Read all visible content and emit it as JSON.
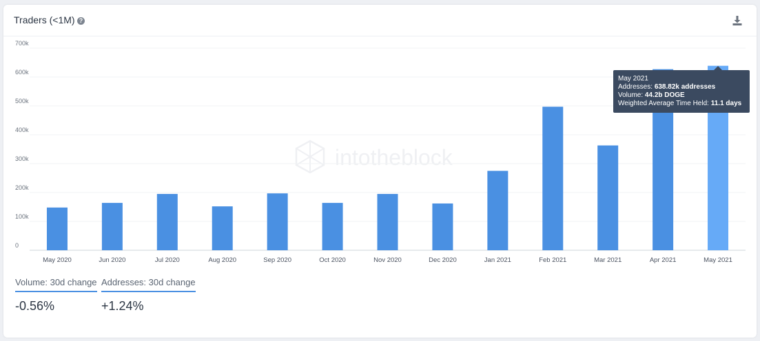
{
  "header": {
    "title": "Traders (<1M)",
    "help_icon": "question-circle-icon",
    "download_icon": "download-icon"
  },
  "watermark": "intotheblock",
  "chart_data": {
    "type": "bar",
    "categories": [
      "May 2020",
      "Jun 2020",
      "Jul 2020",
      "Aug 2020",
      "Sep 2020",
      "Oct 2020",
      "Nov 2020",
      "Dec 2020",
      "Jan 2021",
      "Feb 2021",
      "Mar 2021",
      "Apr 2021",
      "May 2021"
    ],
    "values": [
      148000,
      164000,
      195000,
      152000,
      197000,
      164000,
      195000,
      162000,
      275000,
      497000,
      363000,
      627000,
      638820
    ],
    "y_tick_labels": [
      "0",
      "100k",
      "200k",
      "300k",
      "400k",
      "500k",
      "600k",
      "700k"
    ],
    "y_tick_values": [
      0,
      100000,
      200000,
      300000,
      400000,
      500000,
      600000,
      700000
    ],
    "ylim": [
      0,
      700000
    ],
    "grid": true,
    "bar_color": "#4a90e2",
    "highlight_color": "#66aaf7",
    "highlight_index": 12,
    "tooltip": {
      "title": "May 2021",
      "rows": [
        {
          "label": "Addresses:",
          "value": "638.82k addresses"
        },
        {
          "label": "Volume:",
          "value": "44.2b DOGE"
        },
        {
          "label": "Weighted Average Time Held:",
          "value": "11.1 days"
        }
      ]
    }
  },
  "metrics": [
    {
      "label": "Volume: 30d change",
      "value": "-0.56%"
    },
    {
      "label": "Addresses: 30d change",
      "value": "+1.24%"
    }
  ]
}
